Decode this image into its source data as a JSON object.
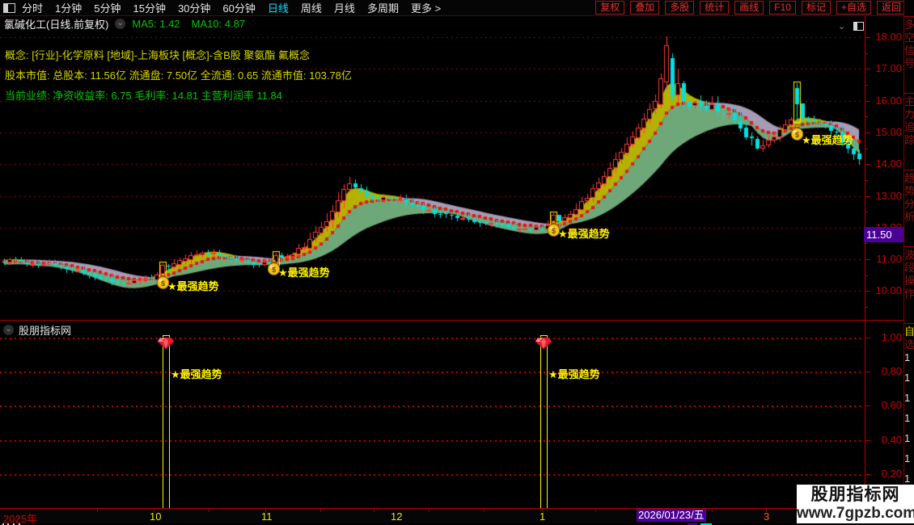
{
  "toolbar": {
    "left_items": [
      "分时",
      "1分钟",
      "5分钟",
      "15分钟",
      "30分钟",
      "60分钟",
      "日线",
      "周线",
      "月线",
      "多周期",
      "更多 >"
    ],
    "active_item": "日线",
    "right_buttons": [
      "复权",
      "叠加",
      "多股",
      "统计",
      "画线",
      "F10",
      "标记",
      "+自选",
      "返回"
    ]
  },
  "title_bar": {
    "title": "氯碱化工(日线.前复权)",
    "ma5": "MA5: 1.42",
    "ma10": "MA10: 4.87"
  },
  "info_overlay": {
    "line1": "概念: [行业]-化学原料 [地域]-上海板块 [概念]-含B股 聚氨酯 氟概念",
    "line2": "股本市值: 总股本: 11.56亿 流通盘: 7.50亿 全流通: 0.65 流通市值: 103.78亿",
    "line3": "当前业绩: 净资收益率: 6.75 毛利率: 14.81 主营利润率 11.84"
  },
  "colors": {
    "up": "#ff3a3a",
    "down": "#00e0e0",
    "band_yellow": "#b5b100",
    "band_green": "#6fa878",
    "band_purple": "#a79ab4",
    "dot": "#ee1111",
    "grid": "#a00000",
    "signal": "#fff200",
    "axis_text": "#cc0000",
    "tag_bg": "#4b0096",
    "active_tab": "#00e5ff"
  },
  "chart_data": {
    "type": "candlestick",
    "title": "氯碱化工 日线 前复权",
    "ylim": [
      9.1,
      18.2
    ],
    "price_gridlines": [
      18,
      17,
      16,
      15,
      14,
      13,
      12,
      11,
      10
    ],
    "bar_pitch": 7,
    "bar_count": 152,
    "ema_spans": {
      "fast": 4,
      "mid": 9,
      "slow": 20
    },
    "anchors": [
      [
        0,
        10.88
      ],
      [
        14,
        10.98
      ],
      [
        28,
        10.92
      ],
      [
        42,
        10.82
      ],
      [
        56,
        10.88
      ],
      [
        70,
        10.8
      ],
      [
        84,
        10.7
      ],
      [
        98,
        10.62
      ],
      [
        112,
        10.5
      ],
      [
        126,
        10.38
      ],
      [
        140,
        10.28
      ],
      [
        154,
        10.26
      ],
      [
        168,
        10.32
      ],
      [
        182,
        10.4
      ],
      [
        196,
        10.5
      ],
      [
        201,
        10.62
      ],
      [
        210,
        10.78
      ],
      [
        224,
        10.98
      ],
      [
        238,
        11.12
      ],
      [
        252,
        11.22
      ],
      [
        266,
        11.18
      ],
      [
        280,
        11.08
      ],
      [
        294,
        10.98
      ],
      [
        308,
        10.9
      ],
      [
        322,
        10.86
      ],
      [
        336,
        10.94
      ],
      [
        350,
        11.06
      ],
      [
        364,
        11.22
      ],
      [
        378,
        11.45
      ],
      [
        392,
        11.85
      ],
      [
        406,
        12.35
      ],
      [
        420,
        13.0
      ],
      [
        428,
        13.45
      ],
      [
        436,
        13.3
      ],
      [
        450,
        13.05
      ],
      [
        464,
        12.9
      ],
      [
        478,
        12.95
      ],
      [
        492,
        12.88
      ],
      [
        506,
        12.75
      ],
      [
        520,
        12.6
      ],
      [
        534,
        12.5
      ],
      [
        548,
        12.42
      ],
      [
        562,
        12.36
      ],
      [
        576,
        12.28
      ],
      [
        590,
        12.2
      ],
      [
        604,
        12.14
      ],
      [
        618,
        12.08
      ],
      [
        632,
        12.02
      ],
      [
        646,
        11.98
      ],
      [
        660,
        11.97
      ],
      [
        674,
        12.02
      ],
      [
        688,
        12.15
      ],
      [
        702,
        12.4
      ],
      [
        716,
        12.7
      ],
      [
        730,
        13.1
      ],
      [
        744,
        13.55
      ],
      [
        758,
        14.05
      ],
      [
        772,
        14.55
      ],
      [
        786,
        15.05
      ],
      [
        800,
        15.6
      ],
      [
        810,
        16.0
      ],
      [
        817,
        16.4
      ],
      [
        824,
        16.95
      ],
      [
        831,
        16.55
      ],
      [
        838,
        16.25
      ],
      [
        845,
        16.05
      ],
      [
        852,
        15.9
      ],
      [
        866,
        15.85
      ],
      [
        880,
        15.8
      ],
      [
        894,
        15.65
      ],
      [
        908,
        15.4
      ],
      [
        922,
        14.95
      ],
      [
        936,
        14.55
      ],
      [
        950,
        14.75
      ],
      [
        964,
        15.1
      ],
      [
        978,
        15.4
      ],
      [
        985,
        15.55
      ],
      [
        992,
        15.45
      ],
      [
        1006,
        15.35
      ],
      [
        1020,
        15.25
      ],
      [
        1034,
        14.95
      ],
      [
        1044,
        14.6
      ],
      [
        1054,
        14.3
      ],
      [
        1066,
        14.15
      ]
    ],
    "volatility_zones": [
      [
        390,
        445,
        1.8
      ],
      [
        845,
        935,
        2.2
      ],
      [
        1025,
        1066,
        1.5
      ]
    ],
    "special_bars": [
      {
        "x": 817,
        "o": 15.9,
        "c": 16.7,
        "h": 16.85,
        "l": 15.75
      },
      {
        "x": 824,
        "o": 16.6,
        "c": 17.75,
        "h": 18.03,
        "l": 16.35
      },
      {
        "x": 831,
        "o": 17.35,
        "c": 16.15,
        "h": 17.5,
        "l": 16.0
      },
      {
        "x": 838,
        "o": 16.2,
        "c": 16.55,
        "h": 17.0,
        "l": 15.95
      },
      {
        "x": 201,
        "o": 10.52,
        "c": 10.82,
        "h": 10.88,
        "l": 10.42,
        "signal": true
      },
      {
        "x": 341,
        "o": 10.92,
        "c": 11.14,
        "h": 11.2,
        "l": 10.85,
        "signal": true
      },
      {
        "x": 684,
        "o": 11.95,
        "c": 12.4,
        "h": 12.45,
        "l": 11.88,
        "signal": true
      },
      {
        "x": 985,
        "o": 16.4,
        "c": 15.9,
        "h": 16.55,
        "l": 15.35,
        "signal": true
      }
    ],
    "markers": [
      {
        "bag_x": 201,
        "bag_y": 347,
        "label_x": 207,
        "label_y": 344
      },
      {
        "bag_x": 338,
        "bag_y": 330,
        "label_x": 344,
        "label_y": 327
      },
      {
        "bag_x": 684,
        "bag_y": 282,
        "label_x": 690,
        "label_y": 279
      },
      {
        "bag_x": 985,
        "bag_y": 163,
        "label_x": 991,
        "label_y": 163
      }
    ],
    "last_price_tag": "11.50"
  },
  "signal_label": "★最强趋势",
  "sub_panel": {
    "title": "股朋指标网",
    "type": "bar",
    "ylim": [
      0,
      1.05
    ],
    "gridlines": [
      1.0,
      0.8,
      0.6,
      0.4,
      0.2
    ],
    "axis_labels": [
      "1.00",
      "0.80",
      "0.60",
      "0.40",
      "0.20"
    ],
    "bars": [
      {
        "x": 205,
        "value": 1.0,
        "label_x": 211,
        "label_y": 56
      },
      {
        "x": 672,
        "value": 1.0,
        "label_x": 678,
        "label_y": 56
      }
    ]
  },
  "price_axis": {
    "labels": [
      "18.00",
      "17.00",
      "16.00",
      "15.00",
      "14.00",
      "13.00",
      "12.00",
      "11.00",
      "10.00"
    ]
  },
  "x_axis": {
    "labels": [
      {
        "t": "2025年",
        "x": 4,
        "c": "#d40000"
      },
      {
        "t": "10",
        "x": 185,
        "c": "#e8e800"
      },
      {
        "t": "11",
        "x": 323,
        "c": "#e8e800"
      },
      {
        "t": "12",
        "x": 483,
        "c": "#e8e800"
      },
      {
        "t": "1",
        "x": 667,
        "c": "#e8e800"
      },
      {
        "t": "3",
        "x": 944,
        "c": "#ff5a00"
      }
    ],
    "highlight": {
      "t": "2026/01/23/五",
      "x": 787
    },
    "ticks": [
      120,
      190,
      258,
      328,
      396,
      462,
      530,
      598,
      670,
      736,
      880,
      947,
      1014
    ]
  },
  "right_strip": {
    "sections": [
      "多空信号",
      "主力追踪",
      "趋势分析",
      "波段操作"
    ],
    "bottom_tab": "自选",
    "bottom_digits": [
      "1",
      "1",
      "1",
      "1",
      "1",
      "1",
      "1"
    ]
  },
  "watermark": {
    "line1": "股朋指标网",
    "line2": "www.7gpzb.com"
  }
}
